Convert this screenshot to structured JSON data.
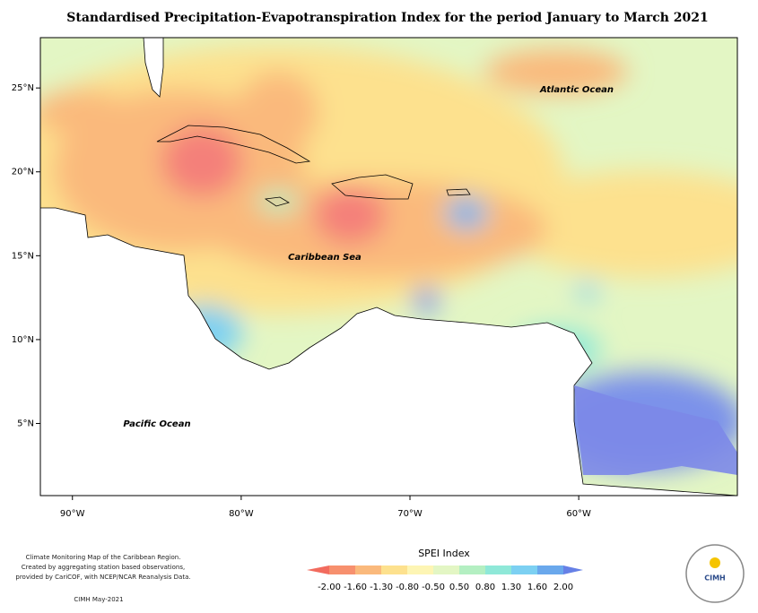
{
  "title": "Standardised Precipitation-Evapotranspiration Index for the period January to March 2021",
  "map": {
    "xlim": [
      -91.9,
      -50.6
    ],
    "ylim": [
      0.7,
      28
    ],
    "xticks": [
      {
        "value": -90,
        "label": "90°W"
      },
      {
        "value": -80,
        "label": "80°W"
      },
      {
        "value": -70,
        "label": "70°W"
      },
      {
        "value": -60,
        "label": "60°W"
      }
    ],
    "yticks": [
      {
        "value": 25,
        "label": "25°N"
      },
      {
        "value": 20,
        "label": "20°N"
      },
      {
        "value": 15,
        "label": "15°N"
      },
      {
        "value": 10,
        "label": "10°N"
      },
      {
        "value": 5,
        "label": "5°N"
      }
    ],
    "labels": [
      "Atlantic Ocean",
      "Caribbean Sea",
      "Pacific Ocean"
    ]
  },
  "legend": {
    "title": "SPEI Index",
    "ticks": [
      {
        "value": -2,
        "label": "-2.00"
      },
      {
        "value": -1.6,
        "label": "-1.60"
      },
      {
        "value": -1.3,
        "label": "-1.30"
      },
      {
        "value": -0.8,
        "label": "-0.80"
      },
      {
        "value": -0.5,
        "label": "-0.50"
      },
      {
        "value": 0.5,
        "label": "0.50"
      },
      {
        "value": 0.8,
        "label": "0.80"
      },
      {
        "value": 1.3,
        "label": "1.30"
      },
      {
        "value": 1.6,
        "label": "1.60"
      },
      {
        "value": 2,
        "label": "2.00"
      }
    ],
    "colors": [
      "#f26b5e",
      "#f7906e",
      "#fab97c",
      "#fde18e",
      "#fdf5b4",
      "#e3f6c4",
      "#b4efc2",
      "#8fe8d8",
      "#7cd0f2",
      "#6aa8ec",
      "#6680e6"
    ]
  },
  "footer": {
    "lines": [
      "Climate Monitoring Map of the Caribbean Region.",
      "Created by aggregating station based observations,",
      "provided by CariCOF, with NCEP/NCAR Reanalysis Data."
    ],
    "credit": "CIMH May-2021"
  },
  "logo": {
    "text": "CIMH"
  }
}
